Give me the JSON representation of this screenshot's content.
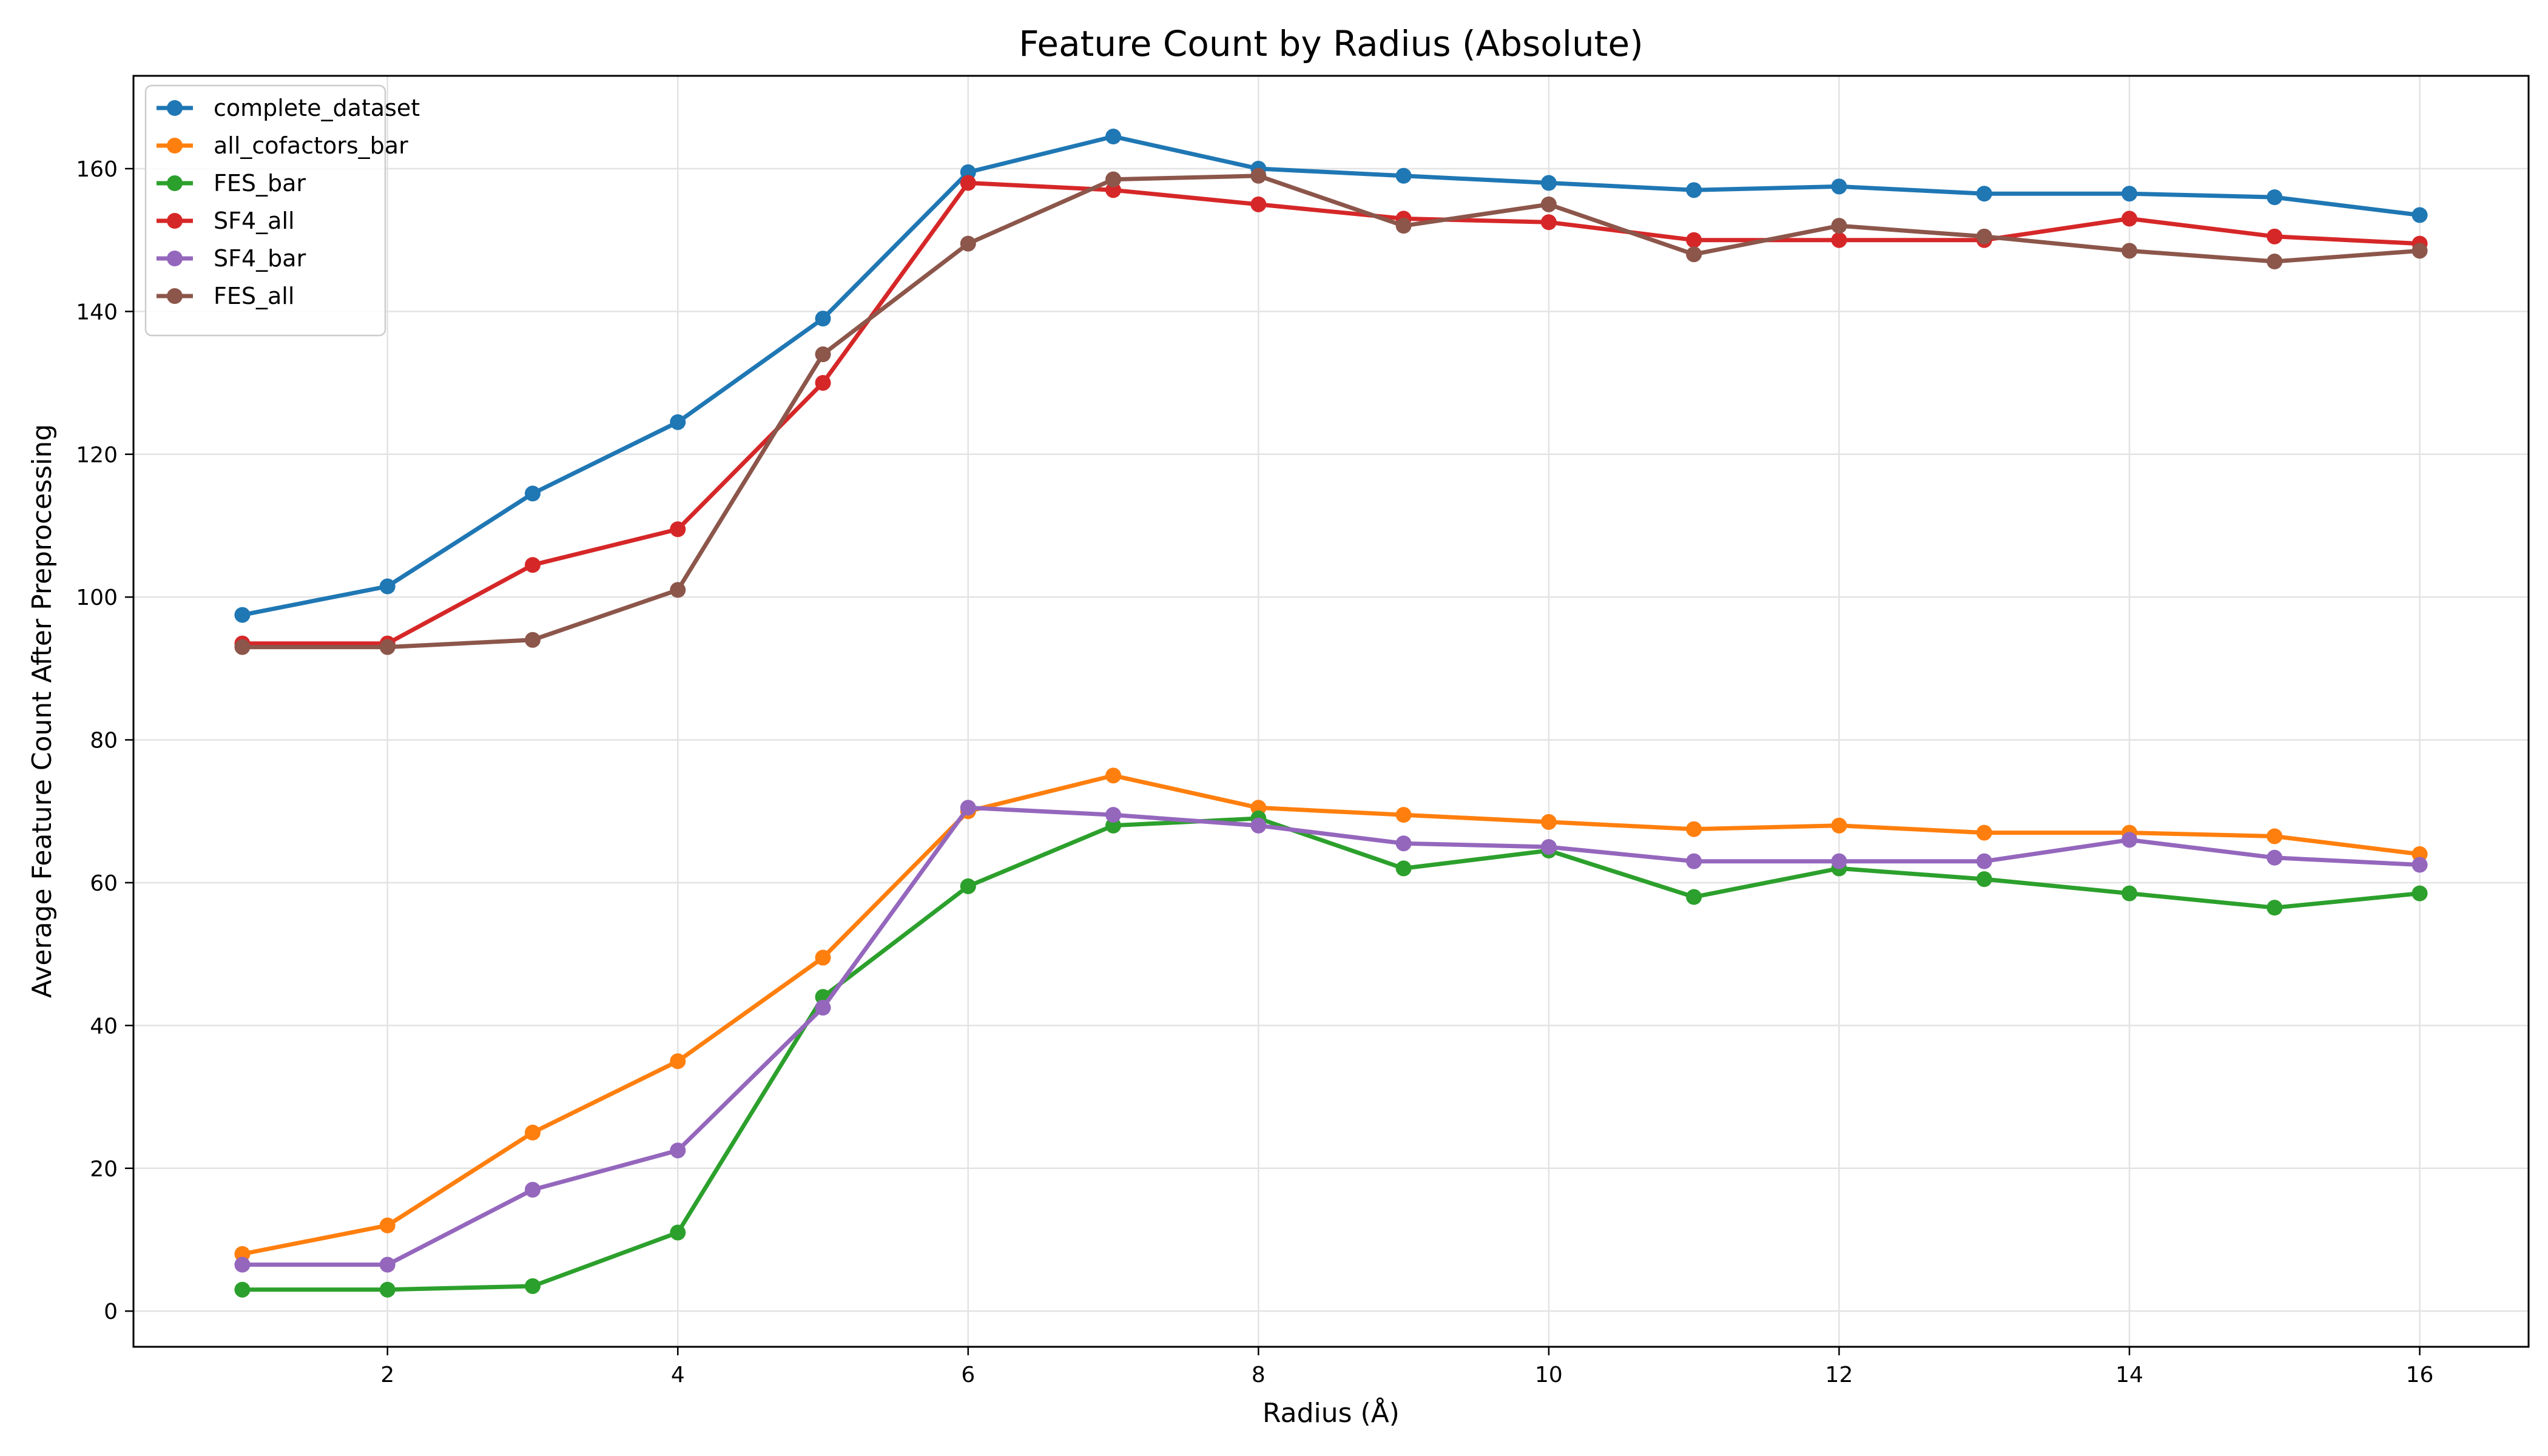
{
  "chart_data": {
    "type": "line",
    "title": "Feature Count by Radius (Absolute)",
    "xlabel": "Radius (Å)",
    "ylabel": "Average Feature Count After Preprocessing",
    "xlim": [
      0.25,
      16.75
    ],
    "ylim": [
      -5,
      173
    ],
    "xticks": [
      2,
      4,
      6,
      8,
      10,
      12,
      14,
      16
    ],
    "yticks": [
      0,
      20,
      40,
      60,
      80,
      100,
      120,
      140,
      160
    ],
    "grid": true,
    "legend_position": "top-left",
    "x": [
      1,
      2,
      3,
      4,
      5,
      6,
      7,
      8,
      9,
      10,
      11,
      12,
      13,
      14,
      15,
      16
    ],
    "series": [
      {
        "name": "complete_dataset",
        "color": "#1f77b4",
        "values": [
          97.5,
          101.5,
          114.5,
          124.5,
          139,
          159.5,
          164.5,
          160,
          159,
          158,
          157,
          157.5,
          156.5,
          156.5,
          156,
          153.5
        ]
      },
      {
        "name": "all_cofactors_bar",
        "color": "#ff7f0e",
        "values": [
          8,
          12,
          25,
          35,
          49.5,
          70,
          75,
          70.5,
          69.5,
          68.5,
          67.5,
          68,
          67,
          67,
          66.5,
          64
        ]
      },
      {
        "name": "FES_bar",
        "color": "#2ca02c",
        "values": [
          3,
          3,
          3.5,
          11,
          44,
          59.5,
          68,
          69,
          62,
          64.5,
          58,
          62,
          60.5,
          58.5,
          56.5,
          58.5
        ]
      },
      {
        "name": "SF4_all",
        "color": "#d62728",
        "values": [
          93.5,
          93.5,
          104.5,
          109.5,
          130,
          158,
          157,
          155,
          153,
          152.5,
          150,
          150,
          150,
          153,
          150.5,
          149.5
        ]
      },
      {
        "name": "SF4_bar",
        "color": "#9467bd",
        "values": [
          6.5,
          6.5,
          17,
          22.5,
          42.5,
          70.5,
          69.5,
          68,
          65.5,
          65,
          63,
          63,
          63,
          66,
          63.5,
          62.5
        ]
      },
      {
        "name": "FES_all",
        "color": "#8c564b",
        "values": [
          93,
          93,
          94,
          101,
          134,
          149.5,
          158.5,
          159,
          152,
          155,
          148,
          152,
          150.5,
          148.5,
          147,
          148.5
        ]
      }
    ]
  }
}
